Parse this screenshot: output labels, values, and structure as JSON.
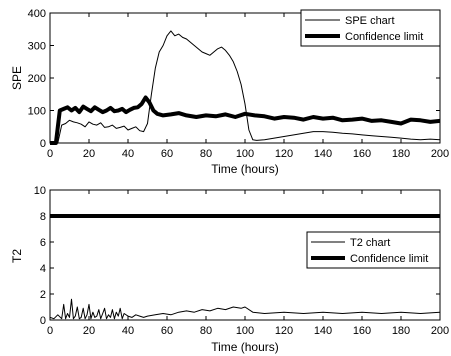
{
  "chart_data": [
    {
      "type": "line",
      "xlabel": "Time (hours)",
      "ylabel": "SPE",
      "xlim": [
        0,
        200
      ],
      "ylim": [
        0,
        400
      ],
      "xticks": [
        0,
        20,
        40,
        60,
        80,
        100,
        120,
        140,
        160,
        180,
        200
      ],
      "yticks": [
        0,
        100,
        200,
        300,
        400
      ],
      "grid": false,
      "legend_position": "top-right",
      "series": [
        {
          "name": "SPE chart",
          "style": "thin",
          "color": "#000000",
          "x": [
            0,
            4,
            6,
            8,
            10,
            12,
            14,
            16,
            18,
            20,
            22,
            24,
            26,
            28,
            30,
            32,
            34,
            36,
            38,
            40,
            42,
            44,
            46,
            48,
            50,
            52,
            54,
            56,
            58,
            60,
            62,
            64,
            66,
            68,
            70,
            72,
            74,
            76,
            78,
            80,
            82,
            84,
            86,
            88,
            90,
            92,
            94,
            96,
            98,
            100,
            102,
            104,
            106,
            110,
            115,
            120,
            125,
            130,
            135,
            140,
            145,
            150,
            155,
            160,
            165,
            170,
            175,
            180,
            185,
            190,
            195,
            200
          ],
          "y": [
            0,
            0,
            55,
            60,
            70,
            65,
            62,
            58,
            50,
            65,
            58,
            55,
            62,
            48,
            50,
            55,
            45,
            48,
            52,
            40,
            45,
            50,
            38,
            35,
            60,
            150,
            230,
            280,
            300,
            330,
            345,
            330,
            335,
            325,
            320,
            310,
            300,
            290,
            280,
            275,
            270,
            280,
            290,
            295,
            285,
            270,
            250,
            220,
            180,
            120,
            40,
            10,
            8,
            10,
            15,
            20,
            25,
            30,
            35,
            35,
            33,
            30,
            28,
            25,
            22,
            20,
            18,
            15,
            12,
            10,
            12,
            10
          ]
        },
        {
          "name": "Confidence limit",
          "style": "thick",
          "color": "#000000",
          "x": [
            0,
            3,
            5,
            7,
            9,
            11,
            13,
            15,
            17,
            19,
            21,
            23,
            25,
            27,
            29,
            31,
            33,
            35,
            37,
            39,
            41,
            43,
            45,
            47,
            49,
            51,
            53,
            55,
            58,
            62,
            66,
            70,
            75,
            80,
            85,
            90,
            95,
            100,
            105,
            110,
            115,
            120,
            125,
            130,
            135,
            140,
            145,
            150,
            155,
            160,
            165,
            170,
            175,
            180,
            185,
            190,
            195,
            200
          ],
          "y": [
            0,
            0,
            100,
            105,
            110,
            100,
            108,
            95,
            112,
            105,
            98,
            110,
            102,
            95,
            100,
            108,
            98,
            100,
            105,
            95,
            102,
            108,
            110,
            120,
            140,
            125,
            100,
            90,
            85,
            88,
            92,
            85,
            80,
            85,
            82,
            88,
            80,
            90,
            85,
            82,
            75,
            80,
            78,
            72,
            80,
            75,
            78,
            70,
            72,
            75,
            68,
            70,
            65,
            60,
            72,
            70,
            65,
            68
          ]
        }
      ]
    },
    {
      "type": "line",
      "xlabel": "Time (hours)",
      "ylabel": "T2",
      "xlim": [
        0,
        200
      ],
      "ylim": [
        0,
        10
      ],
      "xticks": [
        0,
        20,
        40,
        60,
        80,
        100,
        120,
        140,
        160,
        180,
        200
      ],
      "yticks": [
        0,
        2,
        4,
        6,
        8,
        10
      ],
      "grid": false,
      "legend_position": "right",
      "series": [
        {
          "name": "T2 chart",
          "style": "thin",
          "color": "#000000",
          "x": [
            0,
            2,
            4,
            6,
            7,
            8,
            9,
            10,
            11,
            12,
            13,
            14,
            15,
            16,
            17,
            18,
            19,
            20,
            21,
            22,
            23,
            24,
            25,
            26,
            27,
            28,
            29,
            30,
            31,
            32,
            33,
            34,
            35,
            36,
            37,
            38,
            40,
            42,
            44,
            46,
            48,
            50,
            54,
            58,
            62,
            66,
            70,
            74,
            78,
            82,
            86,
            90,
            94,
            98,
            100,
            104,
            110,
            120,
            130,
            140,
            150,
            160,
            170,
            180,
            190,
            200
          ],
          "y": [
            0.2,
            0.1,
            0.4,
            0.1,
            1.2,
            0.1,
            0.5,
            0.2,
            1.6,
            0.1,
            0.3,
            1.0,
            0.1,
            0.2,
            0.9,
            0.1,
            0.4,
            1.2,
            0.1,
            0.6,
            0.2,
            0.3,
            0.8,
            0.1,
            0.5,
            0.9,
            0.1,
            0.4,
            0.2,
            0.8,
            0.1,
            0.6,
            0.3,
            0.9,
            0.1,
            0.5,
            0.3,
            0.2,
            0.4,
            0.3,
            0.2,
            0.3,
            0.4,
            0.5,
            0.4,
            0.6,
            0.7,
            0.6,
            0.8,
            0.7,
            0.9,
            0.8,
            1.0,
            0.9,
            1.0,
            0.6,
            0.5,
            0.6,
            0.5,
            0.6,
            0.5,
            0.6,
            0.5,
            0.6,
            0.5,
            0.6
          ]
        },
        {
          "name": "Confidence limit",
          "style": "thick",
          "color": "#000000",
          "x": [
            0,
            200
          ],
          "y": [
            8,
            8
          ]
        }
      ]
    }
  ]
}
